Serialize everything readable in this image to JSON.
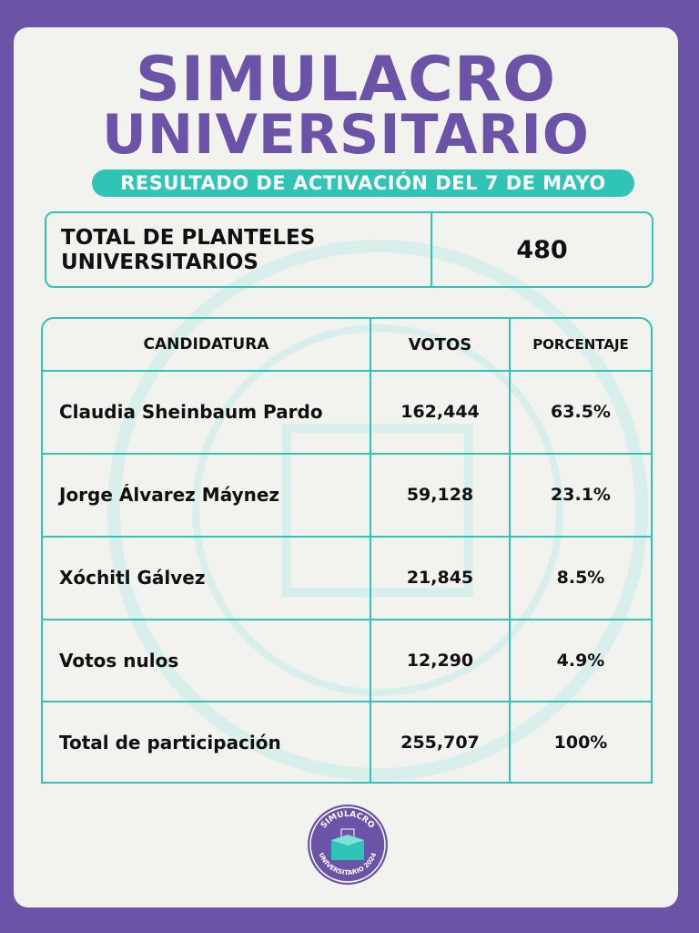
{
  "header": {
    "title_line1": "SIMULACRO",
    "title_line2": "UNIVERSITARIO",
    "subtitle": "RESULTADO DE ACTIVACIÓN DEL 7 DE MAYO"
  },
  "total_planteles": {
    "label": "TOTAL DE PLANTELES UNIVERSITARIOS",
    "value": "480"
  },
  "table": {
    "columns": [
      "CANDIDATURA",
      "VOTOS",
      "PORCENTAJE"
    ],
    "rows": [
      {
        "candidatura": "Claudia Sheinbaum Pardo",
        "votos": "162,444",
        "porcentaje": "63.5%"
      },
      {
        "candidatura": "Jorge Álvarez Máynez",
        "votos": "59,128",
        "porcentaje": "23.1%"
      },
      {
        "candidatura": "Xóchitl Gálvez",
        "votos": "21,845",
        "porcentaje": "8.5%"
      },
      {
        "candidatura": "Votos nulos",
        "votos": "12,290",
        "porcentaje": "4.9%"
      },
      {
        "candidatura": "Total de participación",
        "votos": "255,707",
        "porcentaje": "100%"
      }
    ]
  },
  "logo": {
    "text_top": "SIMULACRO",
    "text_bottom": "UNIVERSITARIO 2024"
  },
  "colors": {
    "purple": "#6b53a8",
    "teal": "#2fc4b6",
    "card_bg": "#f2f2ef"
  }
}
